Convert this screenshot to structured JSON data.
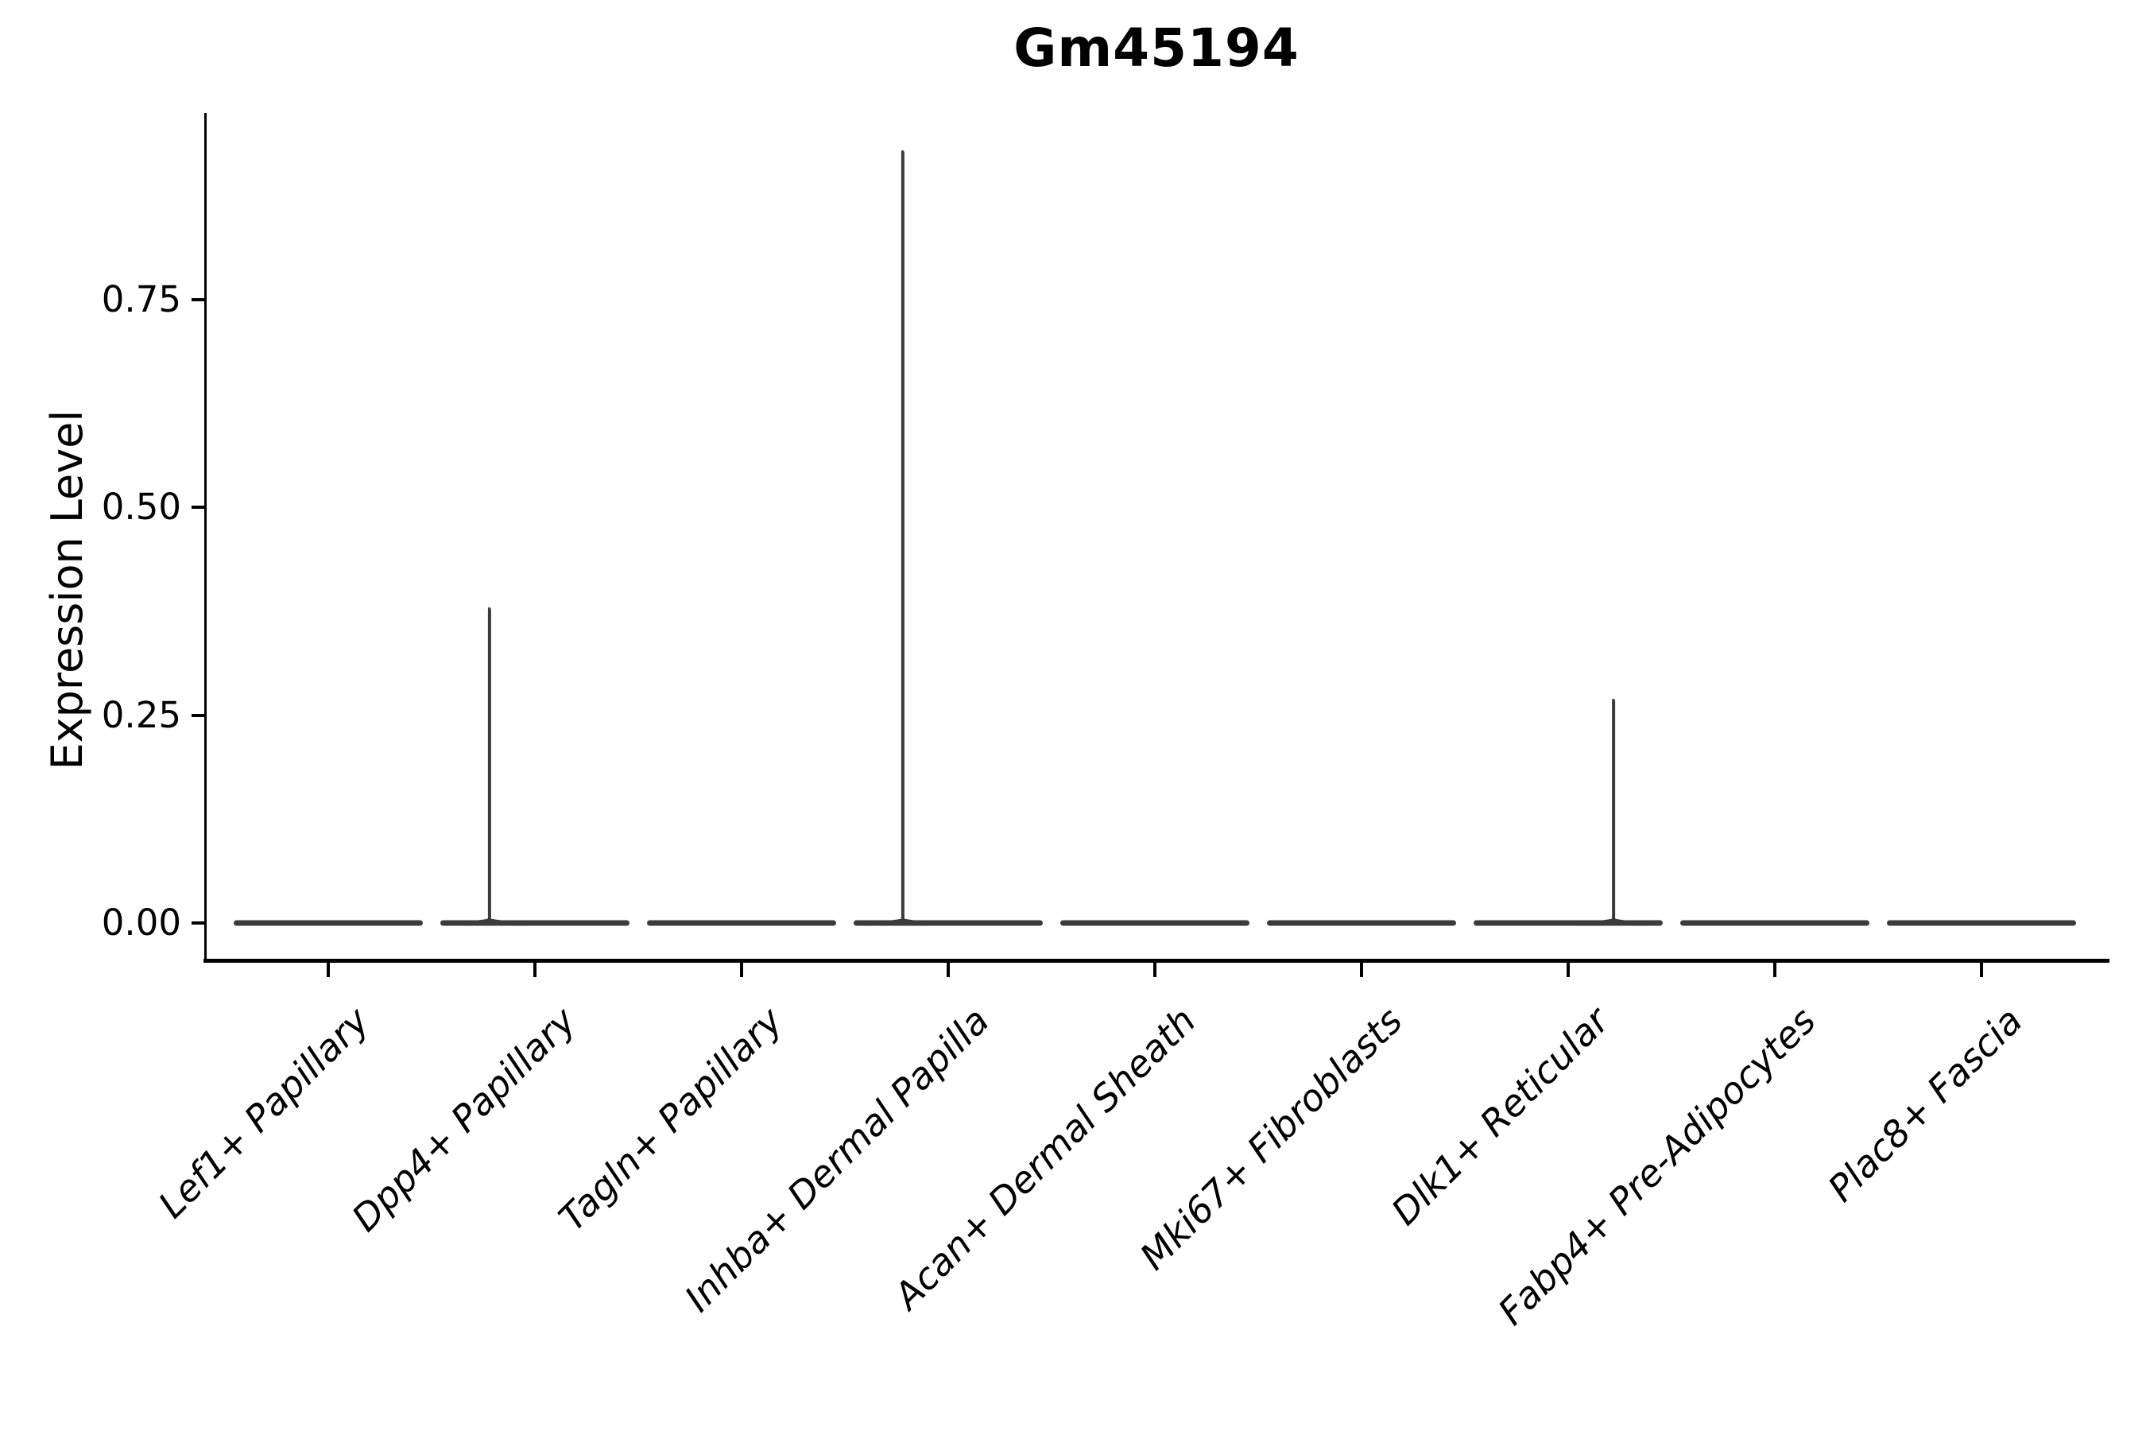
{
  "chart_data": {
    "type": "violin",
    "title": "Gm45194",
    "xlabel": "",
    "ylabel": "Expression Level",
    "legend": "none",
    "grid": false,
    "ylim": [
      -0.045,
      0.975
    ],
    "yticks": [
      {
        "value": 0.0,
        "label": "0.00"
      },
      {
        "value": 0.25,
        "label": "0.25"
      },
      {
        "value": 0.5,
        "label": "0.50"
      },
      {
        "value": 0.75,
        "label": "0.75"
      }
    ],
    "baseline_value": 0,
    "categories": [
      {
        "label": "Lef1+ Papillary",
        "max_expression": 0,
        "spike_offset": 0
      },
      {
        "label": "Dpp4+ Papillary",
        "max_expression": 0.38,
        "spike_offset": -0.24
      },
      {
        "label": "Tagln+ Papillary",
        "max_expression": 0,
        "spike_offset": 0
      },
      {
        "label": "Inhba+ Dermal Papilla",
        "max_expression": 0.93,
        "spike_offset": -0.24
      },
      {
        "label": "Acan+ Dermal Sheath",
        "max_expression": 0,
        "spike_offset": 0
      },
      {
        "label": "Mki67+ Fibroblasts",
        "max_expression": 0,
        "spike_offset": 0
      },
      {
        "label": "Dlk1+ Reticular",
        "max_expression": 0.27,
        "spike_offset": 0.24
      },
      {
        "label": "Fabp4+ Pre-Adipocytes",
        "max_expression": 0,
        "spike_offset": 0
      },
      {
        "label": "Plac8+ Fascia",
        "max_expression": 0,
        "spike_offset": 0
      }
    ],
    "colors": {
      "violin": "#3b3b3b",
      "axis": "#000000",
      "text": "#000000",
      "background": "#ffffff"
    }
  }
}
